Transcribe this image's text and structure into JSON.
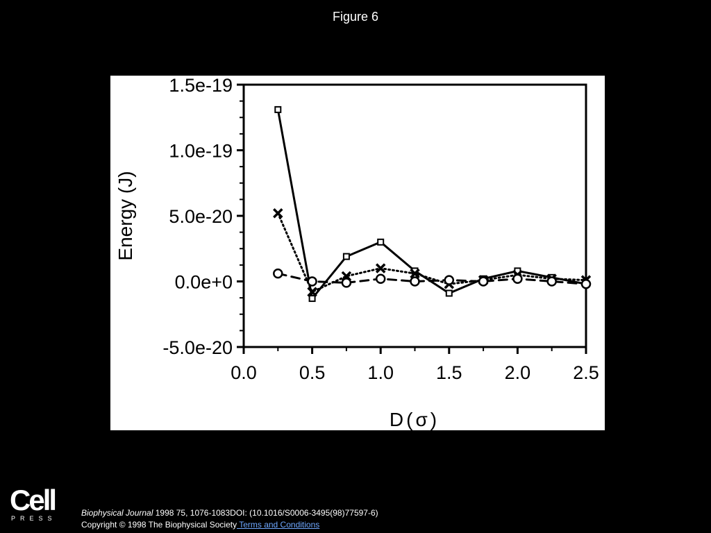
{
  "page": {
    "title": "Figure 6"
  },
  "chart_data": {
    "type": "line",
    "xlabel": "D(σ)",
    "ylabel": "Energy (J)",
    "xlim": [
      0.0,
      2.5
    ],
    "ylim": [
      -5e-20,
      1.5e-19
    ],
    "x_ticks": [
      {
        "value": 0.0,
        "label": "0.0"
      },
      {
        "value": 0.5,
        "label": "0.5"
      },
      {
        "value": 1.0,
        "label": "1.0"
      },
      {
        "value": 1.5,
        "label": "1.5"
      },
      {
        "value": 2.0,
        "label": "2.0"
      },
      {
        "value": 2.5,
        "label": "2.5"
      }
    ],
    "y_ticks": [
      {
        "value": 1.5e-19,
        "label": "1.5e-19"
      },
      {
        "value": 1e-19,
        "label": "1.0e-19"
      },
      {
        "value": 5e-20,
        "label": "5.0e-20"
      },
      {
        "value": 0.0,
        "label": "0.0e+0"
      },
      {
        "value": -5e-20,
        "label": "-5.0e-20"
      }
    ],
    "grid": false,
    "legend": "none",
    "series": [
      {
        "style": "solid",
        "marker": "square",
        "x": [
          0.25,
          0.5,
          0.75,
          1.0,
          1.25,
          1.5,
          1.75,
          2.0,
          2.25,
          2.5
        ],
        "y": [
          1.31e-19,
          -1.3e-20,
          1.9e-20,
          3e-20,
          8e-21,
          -9e-21,
          2e-21,
          8e-21,
          3e-21,
          -2e-21
        ]
      },
      {
        "style": "dotted",
        "marker": "cross",
        "x": [
          0.25,
          0.5,
          0.75,
          1.0,
          1.25,
          1.5,
          1.75,
          2.0,
          2.25,
          2.5
        ],
        "y": [
          5.2e-20,
          -8e-21,
          4e-21,
          1e-20,
          6e-21,
          -2e-21,
          1e-21,
          5e-21,
          2e-21,
          1e-21
        ]
      },
      {
        "style": "dashed",
        "marker": "circle",
        "x": [
          0.25,
          0.5,
          0.75,
          1.0,
          1.25,
          1.5,
          1.75,
          2.0,
          2.25,
          2.5
        ],
        "y": [
          6e-21,
          0.0,
          -1e-21,
          2e-21,
          0.0,
          1e-21,
          0.0,
          2e-21,
          0.0,
          -2e-21
        ]
      }
    ]
  },
  "footer": {
    "logo_main": "Cell",
    "logo_sub": "PRESS",
    "citation_journal": "Biophysical Journal",
    "citation_rest": " 1998 75, 1076-1083DOI: (10.1016/S0006-3495(98)77597-6)",
    "copyright": "Copyright © 1998 The Biophysical Society",
    "terms_link": " Terms and Conditions"
  }
}
